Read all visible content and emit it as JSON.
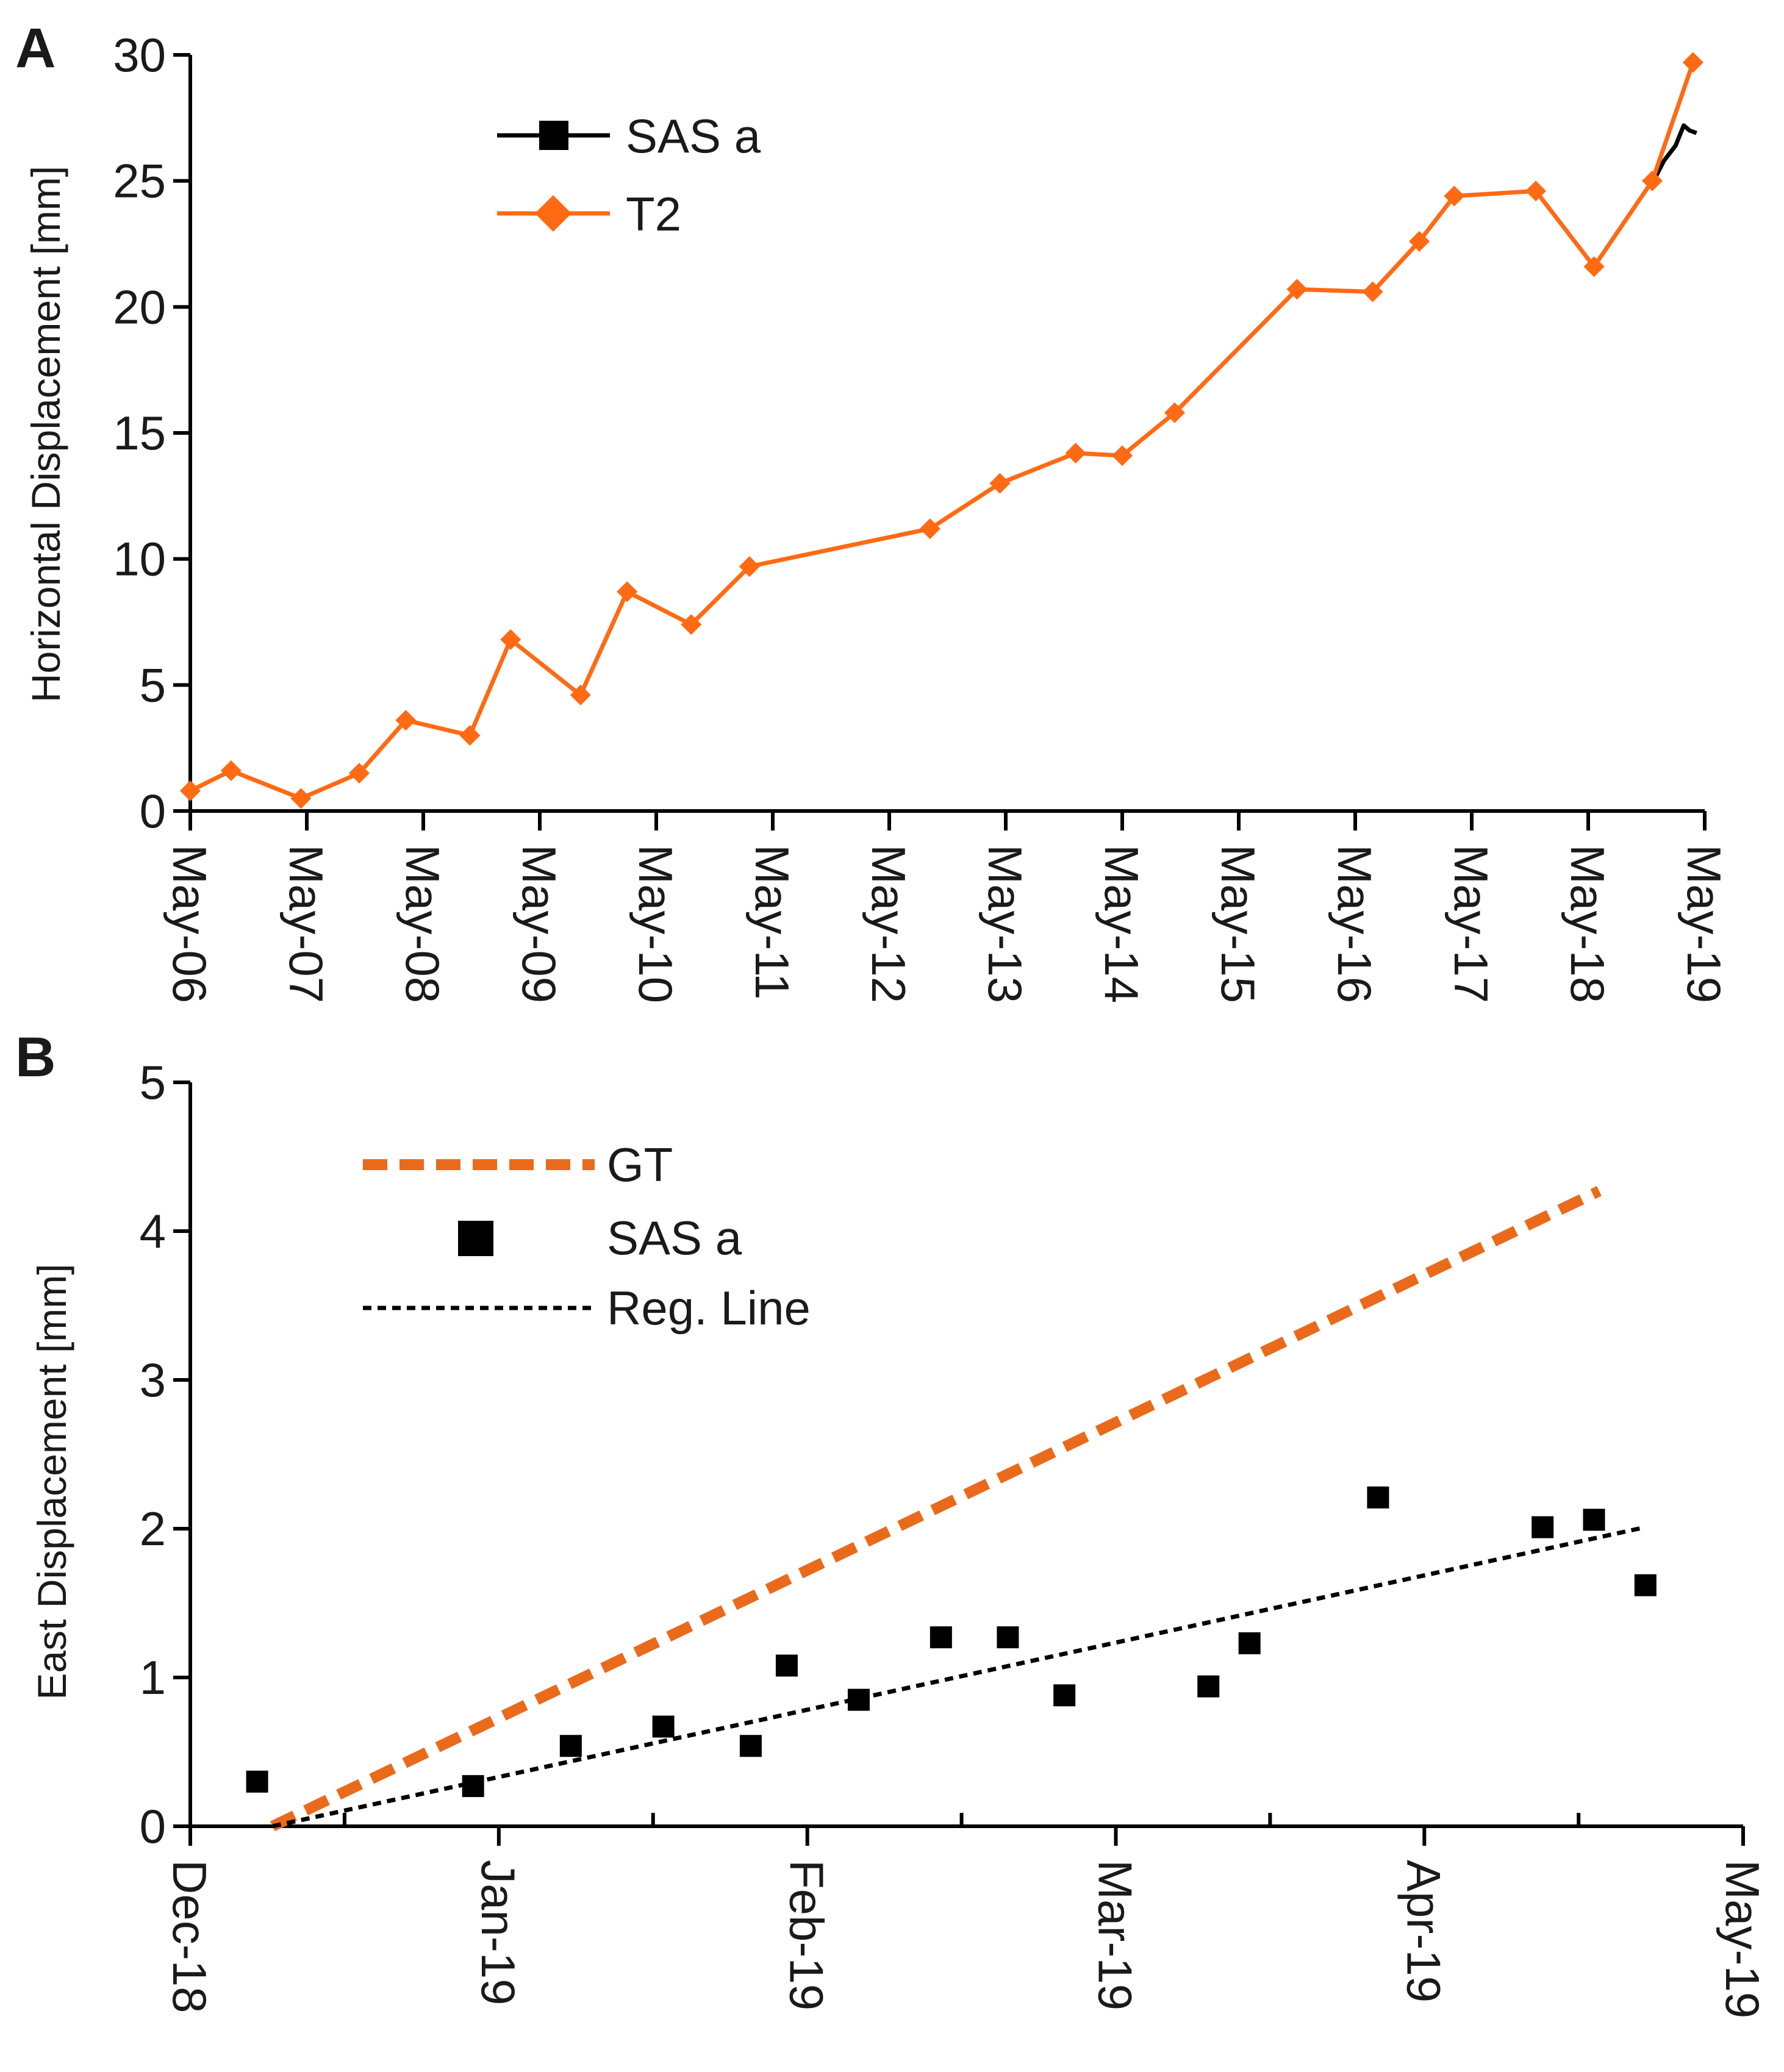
{
  "chart_data": [
    {
      "panel_label": "A",
      "type": "line",
      "ylabel": "Horizontal Displacement [mm]",
      "ylim": [
        0,
        30
      ],
      "yticks": [
        "0",
        "5",
        "10",
        "15",
        "20",
        "25",
        "30"
      ],
      "xlim": [
        2006.0,
        2019.0
      ],
      "xticks": [
        {
          "label": "May-06",
          "x": 2006.0
        },
        {
          "label": "May-07",
          "x": 2007.0
        },
        {
          "label": "May-08",
          "x": 2008.0
        },
        {
          "label": "May-09",
          "x": 2009.0
        },
        {
          "label": "May-10",
          "x": 2010.0
        },
        {
          "label": "May-11",
          "x": 2011.0
        },
        {
          "label": "May-12",
          "x": 2012.0
        },
        {
          "label": "May-13",
          "x": 2013.0
        },
        {
          "label": "May-14",
          "x": 2014.0
        },
        {
          "label": "May-15",
          "x": 2015.0
        },
        {
          "label": "May-16",
          "x": 2016.0
        },
        {
          "label": "May-17",
          "x": 2017.0
        },
        {
          "label": "May-18",
          "x": 2018.0
        },
        {
          "label": "May-19",
          "x": 2019.0
        }
      ],
      "legend": [
        "SAS a",
        "T2"
      ],
      "series": [
        {
          "name": "SAS a",
          "color": "#000000",
          "marker": "square",
          "x": [
            2018.55,
            2018.65,
            2018.75,
            2018.82,
            2018.87,
            2018.93
          ],
          "y": [
            24.9,
            25.8,
            26.4,
            27.2,
            27.0,
            26.9
          ]
        },
        {
          "name": "T2",
          "color": "#ff6a13",
          "marker": "diamond",
          "x": [
            2006.0,
            2006.35,
            2006.95,
            2007.45,
            2007.85,
            2008.4,
            2008.75,
            2009.35,
            2009.75,
            2010.3,
            2010.8,
            2012.35,
            2012.95,
            2013.6,
            2014.0,
            2014.45,
            2015.5,
            2016.15,
            2016.55,
            2016.85,
            2017.55,
            2018.05,
            2018.55,
            2018.9
          ],
          "y": [
            0.8,
            1.6,
            0.5,
            1.5,
            3.6,
            3.0,
            6.8,
            4.6,
            8.7,
            7.4,
            9.7,
            11.2,
            13.0,
            14.2,
            14.1,
            15.8,
            20.7,
            20.6,
            22.6,
            24.4,
            24.6,
            21.6,
            25.0,
            29.7
          ]
        }
      ]
    },
    {
      "panel_label": "B",
      "type": "scatter",
      "ylabel": "East Displacement [mm]",
      "ylim": [
        0,
        5
      ],
      "yticks": [
        "0",
        "1",
        "2",
        "3",
        "4",
        "5"
      ],
      "xlim": [
        0,
        151
      ],
      "xticks": [
        {
          "label": "Dec-18",
          "x": 0
        },
        {
          "label": "Jan-19",
          "x": 30
        },
        {
          "label": "Feb-19",
          "x": 60
        },
        {
          "label": "Mar-19",
          "x": 90
        },
        {
          "label": "Apr-19",
          "x": 120
        },
        {
          "label": "May-19",
          "x": 151
        }
      ],
      "xticks_minor": [
        15,
        45,
        75,
        105,
        135
      ],
      "legend": [
        "GT",
        "SAS a",
        "Reg. Line"
      ],
      "series": [
        {
          "name": "GT",
          "color": "#ea6a1c",
          "style": "dashed-line",
          "x": [
            8,
            137
          ],
          "y": [
            0.0,
            4.27
          ]
        },
        {
          "name": "SAS a",
          "color": "#000000",
          "style": "square-markers",
          "x": [
            6.5,
            27.5,
            37,
            46,
            54.5,
            58,
            65,
            73,
            79.5,
            85,
            99,
            103,
            115.5,
            131.5,
            136.5,
            141.5
          ],
          "y": [
            0.3,
            0.27,
            0.54,
            0.67,
            0.54,
            1.08,
            0.85,
            1.27,
            1.27,
            0.88,
            0.94,
            1.23,
            2.21,
            2.01,
            2.06,
            1.62
          ]
        },
        {
          "name": "Reg. Line",
          "color": "#000000",
          "style": "dotted-line",
          "x": [
            8,
            141.5
          ],
          "y": [
            0.0,
            2.01
          ]
        }
      ]
    }
  ]
}
